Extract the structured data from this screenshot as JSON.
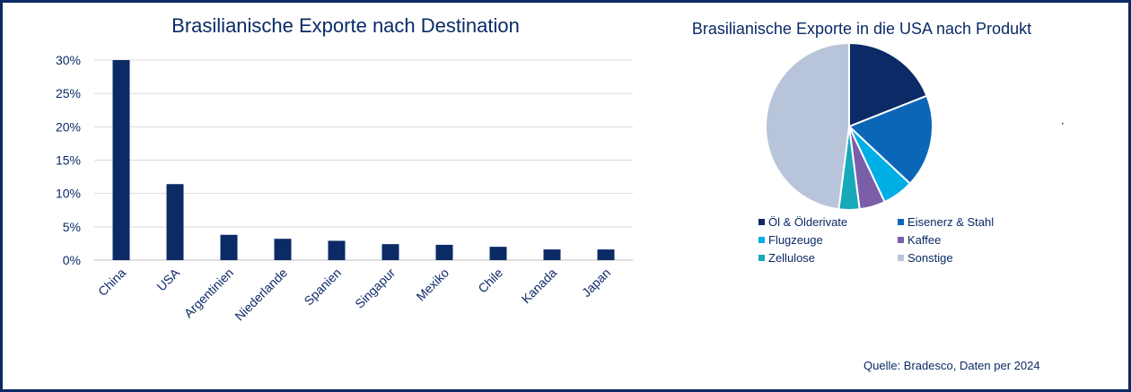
{
  "colors": {
    "frame": "#0b2a66",
    "text": "#0b2a66",
    "bar": "#0b2a66",
    "grid": "#d9d9d9"
  },
  "chart_data": [
    {
      "type": "bar",
      "title": "Brasilianische Exporte nach Destination",
      "categories": [
        "China",
        "USA",
        "Argentinien",
        "Niederlande",
        "Spanien",
        "Singapur",
        "Mexiko",
        "Chile",
        "Kanada",
        "Japan"
      ],
      "values": [
        30.0,
        11.4,
        3.8,
        3.2,
        2.9,
        2.4,
        2.3,
        2.0,
        1.6,
        1.6
      ],
      "yticks": [
        "0%",
        "5%",
        "10%",
        "15%",
        "20%",
        "25%",
        "30%"
      ],
      "ylim": [
        0,
        30
      ],
      "grid": true,
      "legend": "none"
    },
    {
      "type": "pie",
      "title": "Brasilianische Exporte in die USA nach Produkt",
      "labels": [
        "Öl & Ölderivate",
        "Eisenerz & Stahl",
        "Flugzeuge",
        "Kaffee",
        "Zellulose",
        "Sonstige"
      ],
      "values": [
        19.0,
        18.0,
        6.0,
        5.0,
        4.0,
        48.0
      ],
      "colors": [
        "#0b2a66",
        "#0b66b8",
        "#00aee6",
        "#7b5ea8",
        "#17a9b8",
        "#b8c4d9"
      ],
      "legend": "bottom"
    }
  ],
  "footer": {
    "source": "Quelle: Bradesco, Daten per 2024"
  }
}
